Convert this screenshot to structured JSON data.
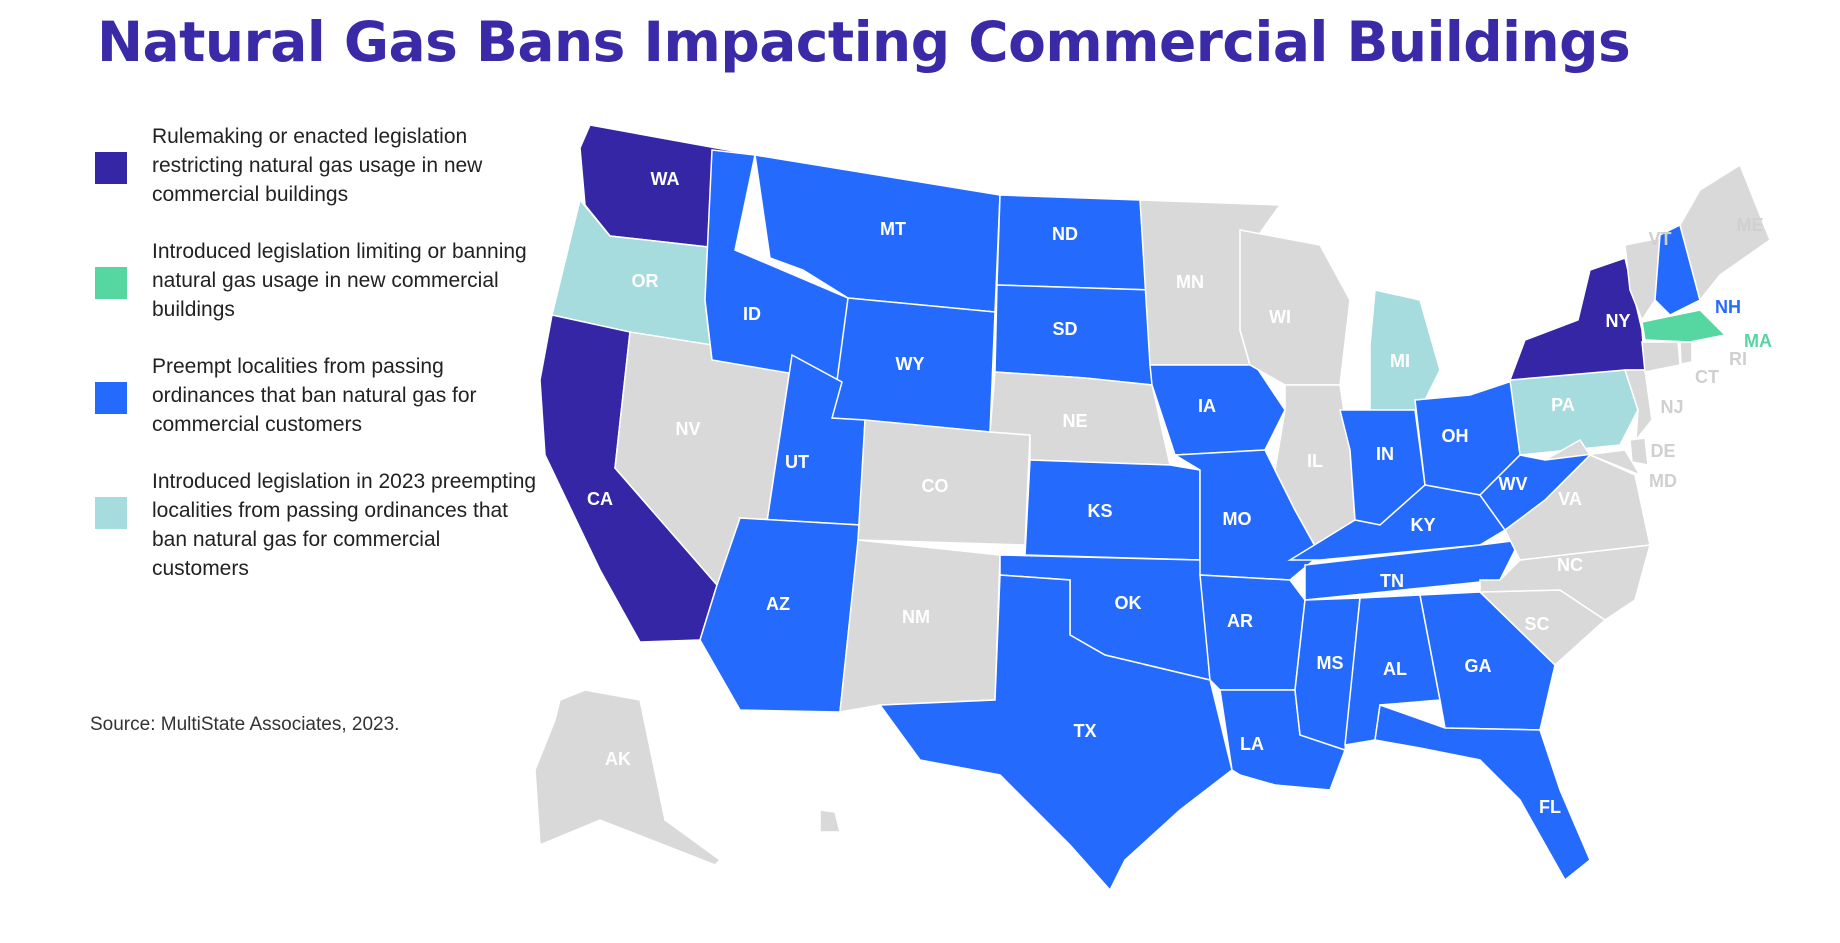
{
  "title": "Natural Gas Bans Impacting Commercial Buildings",
  "colors": {
    "rulemaking": "#3526a6",
    "introduced_ban": "#56d6a0",
    "preempt": "#246bfd",
    "introduced_preempt": "#a7dcdf",
    "none": "#d9d9d9",
    "title": "#3a2aa8"
  },
  "legend": [
    {
      "category": "rulemaking",
      "label": "Rulemaking or enacted legislation restricting natural gas usage in new commercial buildings"
    },
    {
      "category": "introduced_ban",
      "label": "Introduced legislation limiting or banning natural gas usage in new commercial buildings"
    },
    {
      "category": "preempt",
      "label": "Preempt localities from passing ordinances that ban natural gas for commercial customers"
    },
    {
      "category": "introduced_preempt",
      "label": "Introduced legislation in 2023 preempting localities from passing ordinances that ban natural gas for commercial customers"
    }
  ],
  "source": "Source: MultiState Associates, 2023.",
  "states": {
    "WA": "rulemaking",
    "CA": "rulemaking",
    "NY": "rulemaking",
    "MA": "introduced_ban",
    "MT": "preempt",
    "ND": "preempt",
    "SD": "preempt",
    "ID": "preempt",
    "WY": "preempt",
    "UT": "preempt",
    "AZ": "preempt",
    "KS": "preempt",
    "OK": "preempt",
    "TX": "preempt",
    "IA": "preempt",
    "MO": "preempt",
    "AR": "preempt",
    "LA": "preempt",
    "MS": "preempt",
    "AL": "preempt",
    "GA": "preempt",
    "FL": "preempt",
    "TN": "preempt",
    "KY": "preempt",
    "IN": "preempt",
    "OH": "preempt",
    "WV": "preempt",
    "NH": "preempt",
    "OR": "introduced_preempt",
    "MI": "introduced_preempt",
    "PA": "introduced_preempt",
    "NV": "none",
    "CO": "none",
    "NM": "none",
    "NE": "none",
    "MN": "none",
    "WI": "none",
    "IL": "none",
    "VA": "none",
    "NC": "none",
    "SC": "none",
    "VT": "none",
    "ME": "none",
    "NJ": "none",
    "DE": "none",
    "MD": "none",
    "CT": "none",
    "RI": "none",
    "AK": "none",
    "HI": "none"
  }
}
